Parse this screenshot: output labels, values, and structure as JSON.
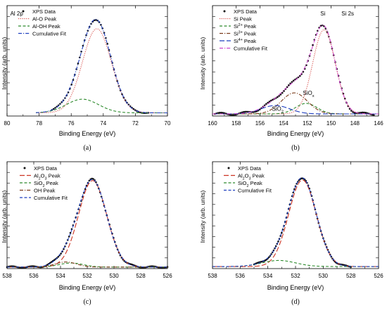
{
  "chart_data": [
    {
      "type": "line",
      "panel_label": "(a)",
      "title": "",
      "annotations": [
        {
          "text": "Al 2p",
          "x": 79.4,
          "y": 0.955
        }
      ],
      "xlabel": "Binding Energy (eV)",
      "ylabel": "Intensity (arb. units)",
      "x_reversed": true,
      "xlim": [
        80,
        70
      ],
      "x_ticks": [
        80,
        78,
        76,
        74,
        72,
        70
      ],
      "ylim": [
        0,
        1.05
      ],
      "y_tick_labels": false,
      "grid": false,
      "legend": [
        "XPS Data",
        "Al-O Peak",
        "Al-OH Peak",
        "Cumulative Fit"
      ],
      "legend_position": "top-left",
      "baseline": 0.03,
      "series": [
        {
          "name": "XPS Data",
          "style": "points",
          "color": "#111111",
          "peaks": [
            {
              "center": 74.4,
              "height": 0.8,
              "width": 0.9
            },
            {
              "center": 75.3,
              "height": 0.13,
              "width": 1.0
            }
          ],
          "x_range": [
            77.2,
            71.2
          ],
          "n": 60,
          "noise": 0.006
        },
        {
          "name": "Al-O Peak",
          "style": "dotted",
          "color": "#d9534f",
          "peaks": [
            {
              "center": 74.4,
              "height": 0.8,
              "width": 0.9
            }
          ],
          "x_range": [
            78.2,
            70
          ]
        },
        {
          "name": "Al-OH Peak",
          "style": "dashed",
          "color": "#2e8b2e",
          "peaks": [
            {
              "center": 75.3,
              "height": 0.13,
              "width": 1.0
            }
          ],
          "x_range": [
            78.2,
            70
          ]
        },
        {
          "name": "Cumulative Fit",
          "style": "dashdot",
          "color": "#1f3fbf",
          "peaks": [
            {
              "center": 74.4,
              "height": 0.8,
              "width": 0.9
            },
            {
              "center": 75.3,
              "height": 0.13,
              "width": 1.0
            }
          ],
          "x_range": [
            78.2,
            70
          ]
        }
      ]
    },
    {
      "type": "line",
      "panel_label": "(b)",
      "title": "",
      "annotations": [
        {
          "text": "Si",
          "x": 150.7,
          "y": 0.955
        },
        {
          "text": "Si 2s",
          "x": 148.6,
          "y": 0.955
        },
        {
          "text": "SiOx",
          "x": 151.9,
          "y": 0.2
        },
        {
          "text": "SiO2",
          "x": 154.5,
          "y": 0.05
        }
      ],
      "xlabel": "Binding Energy (eV)",
      "ylabel": "Intensity (arb. units)",
      "x_reversed": true,
      "xlim": [
        160,
        146
      ],
      "x_ticks": [
        160,
        158,
        156,
        154,
        152,
        150,
        148,
        146
      ],
      "ylim": [
        0,
        1.05
      ],
      "y_tick_labels": false,
      "grid": false,
      "legend": [
        "XPS Data",
        "Si Peak",
        "Si2+ Peak",
        "Si3+ Peak",
        "Si4+ Peak",
        "Cumulative Fit"
      ],
      "legend_position": "top-left",
      "baseline": 0.02,
      "series": [
        {
          "name": "XPS Data",
          "style": "points",
          "color": "#111111",
          "peaks": [
            {
              "center": 150.6,
              "height": 0.8,
              "width": 0.95
            },
            {
              "center": 153.1,
              "height": 0.2,
              "width": 1.1
            },
            {
              "center": 152.1,
              "height": 0.1,
              "width": 0.9
            },
            {
              "center": 154.7,
              "height": 0.08,
              "width": 1.2
            }
          ],
          "x_range": [
            159.8,
            146.4
          ],
          "n": 100,
          "noise": 0.012
        },
        {
          "name": "Si Peak",
          "style": "dotted",
          "color": "#d9534f",
          "peaks": [
            {
              "center": 150.6,
              "height": 0.8,
              "width": 0.95
            }
          ],
          "x_range": [
            160,
            146
          ]
        },
        {
          "name": "Si2+ Peak",
          "style": "dashed",
          "color": "#2e8b2e",
          "peaks": [
            {
              "center": 152.1,
              "height": 0.1,
              "width": 0.9
            }
          ],
          "x_range": [
            160,
            146
          ]
        },
        {
          "name": "Si3+ Peak",
          "style": "dashdot",
          "color": "#7a3b1a",
          "peaks": [
            {
              "center": 153.1,
              "height": 0.2,
              "width": 1.1
            }
          ],
          "x_range": [
            160,
            146
          ]
        },
        {
          "name": "Si4+ Peak",
          "style": "longdash",
          "color": "#1f3fbf",
          "peaks": [
            {
              "center": 154.7,
              "height": 0.08,
              "width": 1.2
            }
          ],
          "x_range": [
            160,
            146
          ]
        },
        {
          "name": "Cumulative Fit",
          "style": "dashdot",
          "color": "#cc44cc",
          "peaks": [
            {
              "center": 150.6,
              "height": 0.8,
              "width": 0.95
            },
            {
              "center": 153.1,
              "height": 0.2,
              "width": 1.1
            },
            {
              "center": 152.1,
              "height": 0.1,
              "width": 0.9
            },
            {
              "center": 154.7,
              "height": 0.08,
              "width": 1.2
            }
          ],
          "x_range": [
            160,
            146
          ]
        }
      ]
    },
    {
      "type": "line",
      "panel_label": "(c)",
      "title": "",
      "annotations": [],
      "xlabel": "Binding Energy (eV)",
      "ylabel": "Intensity (arb. units)",
      "x_reversed": true,
      "xlim": [
        538,
        526
      ],
      "x_ticks": [
        538,
        536,
        534,
        532,
        530,
        528,
        526
      ],
      "ylim": [
        0,
        1.05
      ],
      "y_tick_labels": false,
      "grid": false,
      "legend": [
        "XPS Data",
        "Al2O3 Peak",
        "SiO2 Peak",
        "OH Peak",
        "Cumulative Fit"
      ],
      "legend_position": "top-left",
      "baseline": 0.015,
      "series": [
        {
          "name": "XPS Data",
          "style": "points",
          "color": "#111111",
          "peaks": [
            {
              "center": 531.6,
              "height": 0.85,
              "width": 1.05
            },
            {
              "center": 533.2,
              "height": 0.04,
              "width": 0.9
            },
            {
              "center": 533.6,
              "height": 0.05,
              "width": 0.8
            }
          ],
          "x_range": [
            538,
            526
          ],
          "n": 120,
          "noise": 0.008
        },
        {
          "name": "Al2O3 Peak",
          "style": "longdash",
          "color": "#cc3322",
          "peaks": [
            {
              "center": 531.6,
              "height": 0.85,
              "width": 1.05
            }
          ],
          "x_range": [
            538,
            526
          ]
        },
        {
          "name": "SiO2 Peak",
          "style": "dashed",
          "color": "#2e8b2e",
          "peaks": [
            {
              "center": 533.2,
              "height": 0.04,
              "width": 0.9
            }
          ],
          "x_range": [
            538,
            526
          ]
        },
        {
          "name": "OH Peak",
          "style": "dashdot",
          "color": "#7a3b1a",
          "peaks": [
            {
              "center": 533.6,
              "height": 0.05,
              "width": 0.8
            }
          ],
          "x_range": [
            538,
            526
          ]
        },
        {
          "name": "Cumulative Fit",
          "style": "dashed",
          "color": "#1f3fbf",
          "peaks": [
            {
              "center": 531.6,
              "height": 0.85,
              "width": 1.05
            },
            {
              "center": 533.2,
              "height": 0.04,
              "width": 0.9
            },
            {
              "center": 533.6,
              "height": 0.05,
              "width": 0.8
            }
          ],
          "x_range": [
            538,
            526
          ]
        }
      ]
    },
    {
      "type": "line",
      "panel_label": "(d)",
      "title": "",
      "annotations": [],
      "xlabel": "Binding Energy (eV)",
      "ylabel": "Intensity (arb. units)",
      "x_reversed": true,
      "xlim": [
        538,
        526
      ],
      "x_ticks": [
        538,
        536,
        534,
        532,
        530,
        528,
        526
      ],
      "ylim": [
        0,
        1.05
      ],
      "y_tick_labels": false,
      "grid": false,
      "legend": [
        "XPS Data",
        "Al2O3 Peak",
        "SiO2 Peak",
        "Cumulative Fit"
      ],
      "legend_position": "top-left",
      "baseline": 0.02,
      "series": [
        {
          "name": "XPS Data",
          "style": "points",
          "color": "#111111",
          "peaks": [
            {
              "center": 531.5,
              "height": 0.85,
              "width": 1.0
            },
            {
              "center": 533.2,
              "height": 0.06,
              "width": 1.2
            }
          ],
          "x_range": [
            535.0,
            528.0
          ],
          "n": 85,
          "noise": 0.006
        },
        {
          "name": "Al2O3 Peak",
          "style": "longdash",
          "color": "#cc3322",
          "peaks": [
            {
              "center": 531.5,
              "height": 0.85,
              "width": 1.0
            }
          ],
          "x_range": [
            538,
            526
          ]
        },
        {
          "name": "SiO2 Peak",
          "style": "dashed",
          "color": "#2e8b2e",
          "peaks": [
            {
              "center": 533.2,
              "height": 0.06,
              "width": 1.2
            }
          ],
          "x_range": [
            538,
            526
          ]
        },
        {
          "name": "Cumulative Fit",
          "style": "dashed",
          "color": "#1f3fbf",
          "peaks": [
            {
              "center": 531.5,
              "height": 0.85,
              "width": 1.0
            },
            {
              "center": 533.2,
              "height": 0.06,
              "width": 1.2
            }
          ],
          "x_range": [
            538,
            526
          ]
        }
      ]
    }
  ]
}
